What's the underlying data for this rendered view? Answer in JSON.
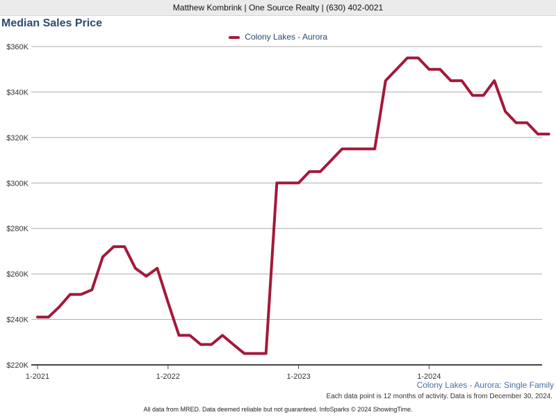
{
  "header": {
    "text": "Matthew Kombrink | One Source Realty | (630) 402-0021"
  },
  "footer": {
    "note": "Each data point is 12 months of activity. Data is from December 30, 2024.",
    "disclaimer": "All data from MRED. Data deemed reliable but not guaranteed. InfoSparks © 2024 ShowingTime."
  },
  "chart_data": {
    "type": "line",
    "title": "Median Sales Price",
    "subtitle": "Colony Lakes - Aurora: Single Family",
    "xlabel": "",
    "ylabel": "",
    "ylim": [
      220000,
      360000
    ],
    "yticks": [
      220000,
      240000,
      260000,
      280000,
      300000,
      320000,
      340000,
      360000
    ],
    "ytick_labels": [
      "$220K",
      "$240K",
      "$260K",
      "$280K",
      "$300K",
      "$320K",
      "$340K",
      "$360K"
    ],
    "xlim": [
      0,
      47
    ],
    "xticks": [
      0,
      12,
      24,
      36
    ],
    "xtick_labels": [
      "1-2021",
      "1-2022",
      "1-2023",
      "1-2024"
    ],
    "grid": true,
    "legend_position": "top-center",
    "series": [
      {
        "name": "Colony Lakes - Aurora",
        "color": "#a3193a",
        "x": [
          0,
          1,
          2,
          3,
          4,
          5,
          6,
          7,
          8,
          9,
          10,
          11,
          12,
          13,
          14,
          15,
          16,
          17,
          18,
          19,
          20,
          21,
          22,
          23,
          24,
          25,
          26,
          27,
          28,
          29,
          30,
          31,
          32,
          33,
          34,
          35,
          36,
          37,
          38,
          39,
          40,
          41,
          42,
          43,
          44,
          45,
          46,
          47
        ],
        "values": [
          241000,
          241000,
          245500,
          251000,
          251000,
          253000,
          267500,
          272000,
          272000,
          262500,
          259000,
          262500,
          247500,
          233000,
          233000,
          229000,
          229000,
          233000,
          229000,
          225000,
          225000,
          225000,
          300000,
          300000,
          300000,
          305000,
          305000,
          310000,
          315000,
          315000,
          315000,
          315000,
          345000,
          350000,
          355000,
          355000,
          350000,
          350000,
          345000,
          345000,
          338500,
          338500,
          345000,
          331500,
          326500,
          326500,
          321500,
          321500
        ]
      }
    ]
  }
}
